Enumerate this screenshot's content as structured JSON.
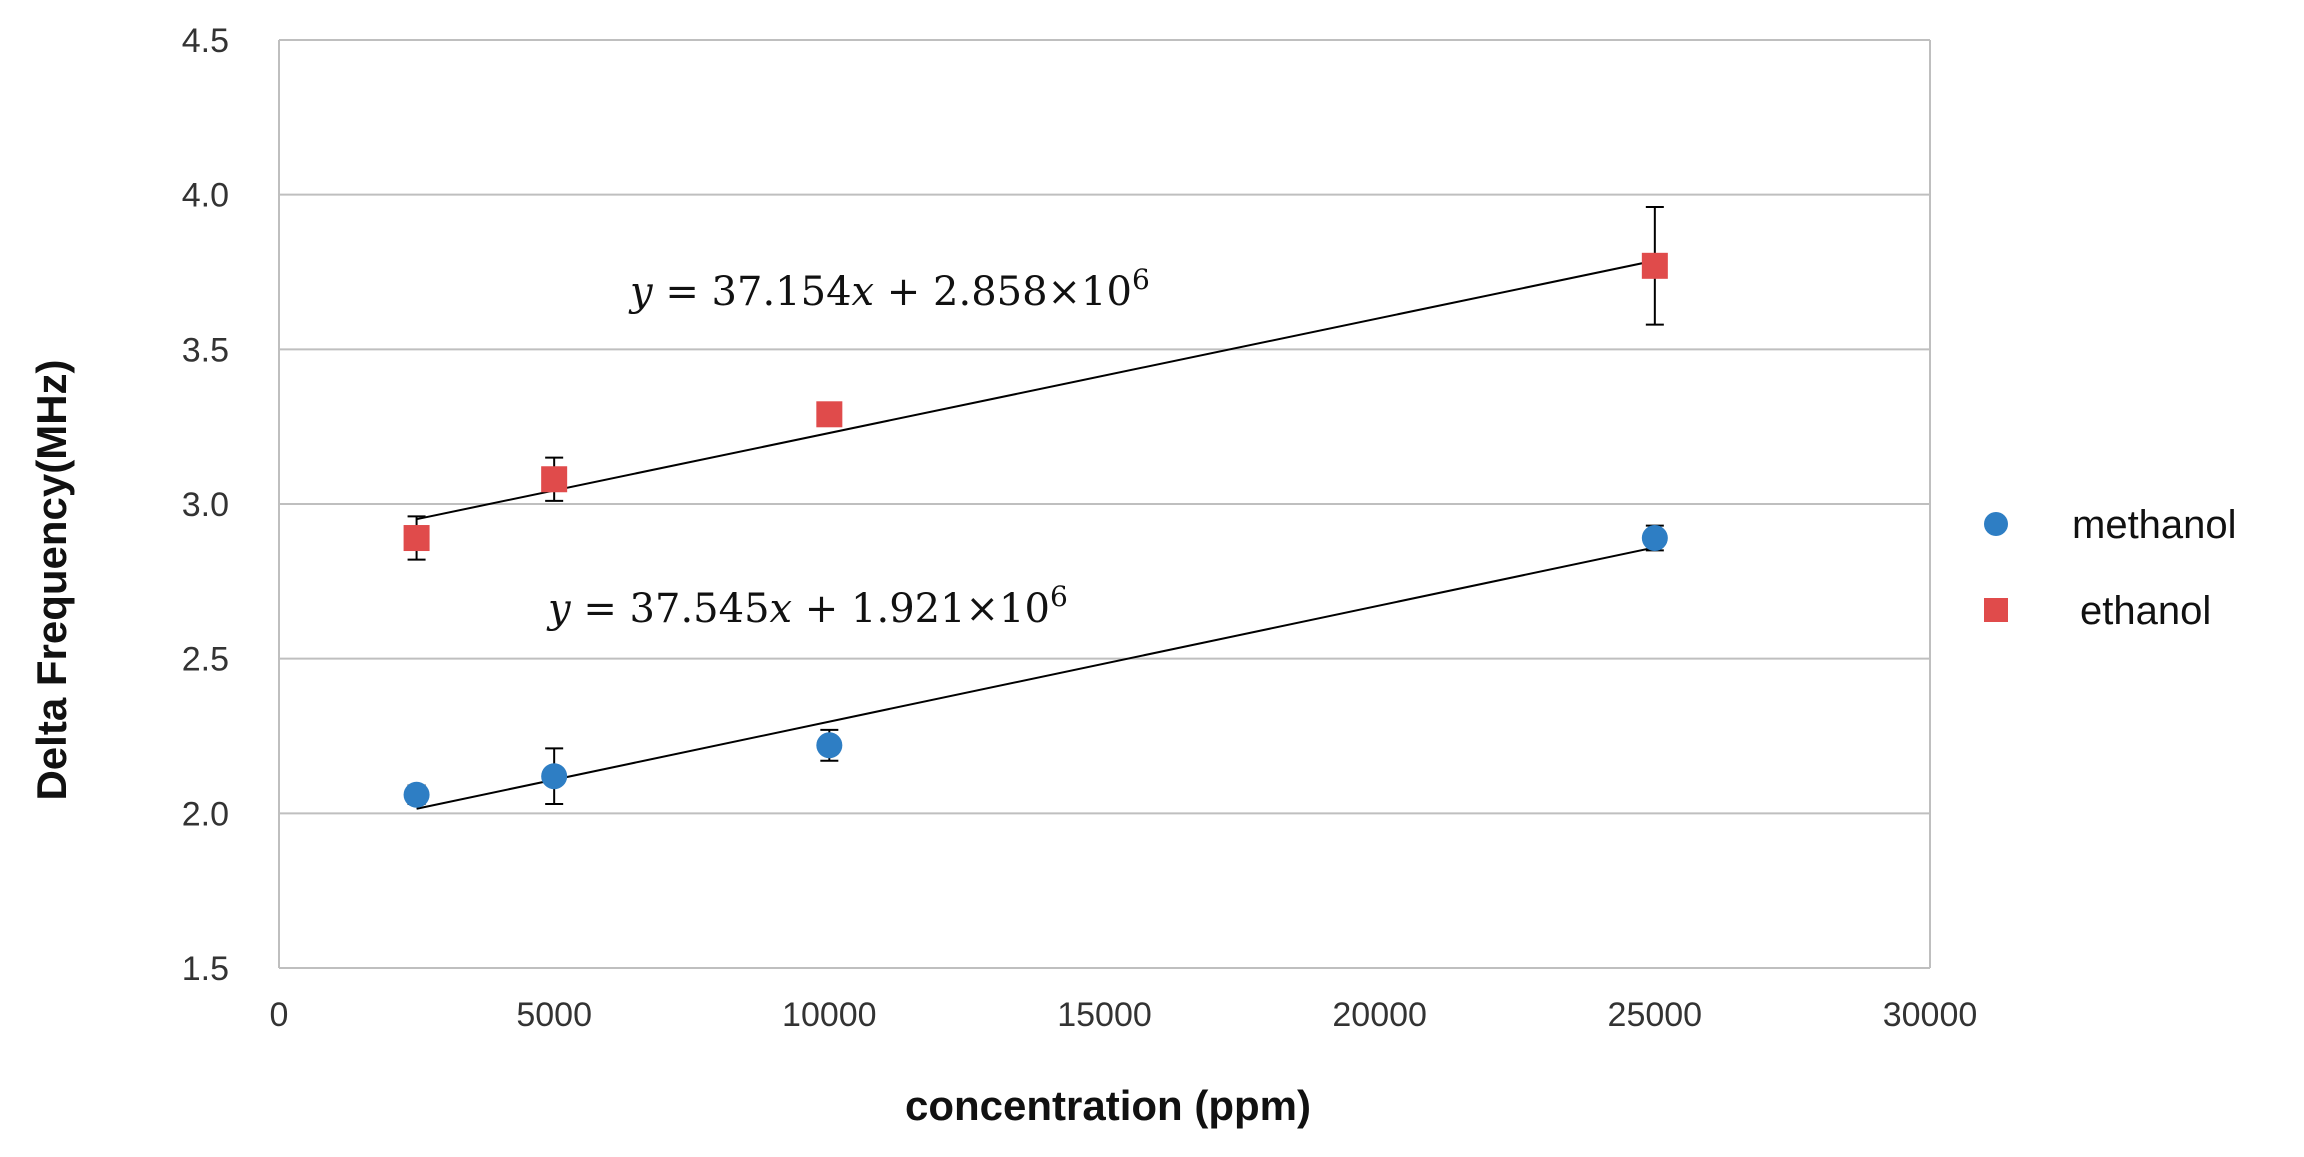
{
  "chart_data": {
    "type": "scatter",
    "title": "",
    "xlabel": "concentration (ppm)",
    "ylabel": "Delta Frequency(MHz)",
    "xlim": [
      0,
      30000
    ],
    "ylim": [
      1.5,
      4.5
    ],
    "x_ticks": [
      0,
      5000,
      10000,
      15000,
      20000,
      25000,
      30000
    ],
    "x_tick_labels": [
      "0",
      "5000",
      "10000",
      "15000",
      "20000",
      "25000",
      "30000"
    ],
    "y_ticks": [
      1.5,
      2.0,
      2.5,
      3.0,
      3.5,
      4.0,
      4.5
    ],
    "y_tick_labels": [
      "1.5",
      "2.0",
      "2.5",
      "3.0",
      "3.5",
      "4.0",
      "4.5"
    ],
    "grid": "horizontal",
    "legend_position": "right",
    "series": [
      {
        "name": "methanol",
        "marker": "circle",
        "color": "#2E7EC4",
        "x": [
          2500,
          5000,
          10000,
          25000
        ],
        "y": [
          2.06,
          2.12,
          2.22,
          2.89
        ],
        "error": [
          0.03,
          0.09,
          0.05,
          0.04
        ],
        "trendline": {
          "slope": 37.545,
          "intercept": 1.921,
          "x_range": [
            2500,
            25000
          ]
        },
        "equation": {
          "lhs": "y",
          "mid": " = 37.545",
          "var": "x",
          "rhs": " + 1.921×10",
          "exp": "6"
        }
      },
      {
        "name": "ethanol",
        "marker": "square",
        "color": "#E04B4B",
        "x": [
          2500,
          5000,
          10000,
          25000
        ],
        "y": [
          2.89,
          3.08,
          3.29,
          3.77
        ],
        "error": [
          0.07,
          0.07,
          0.0,
          0.19
        ],
        "trendline": {
          "slope": 37.154,
          "intercept": 2.858,
          "x_range": [
            2500,
            25000
          ]
        },
        "equation": {
          "lhs": "y",
          "mid": " = 37.154",
          "var": "x",
          "rhs": " + 2.858×10",
          "exp": "6"
        }
      }
    ]
  }
}
